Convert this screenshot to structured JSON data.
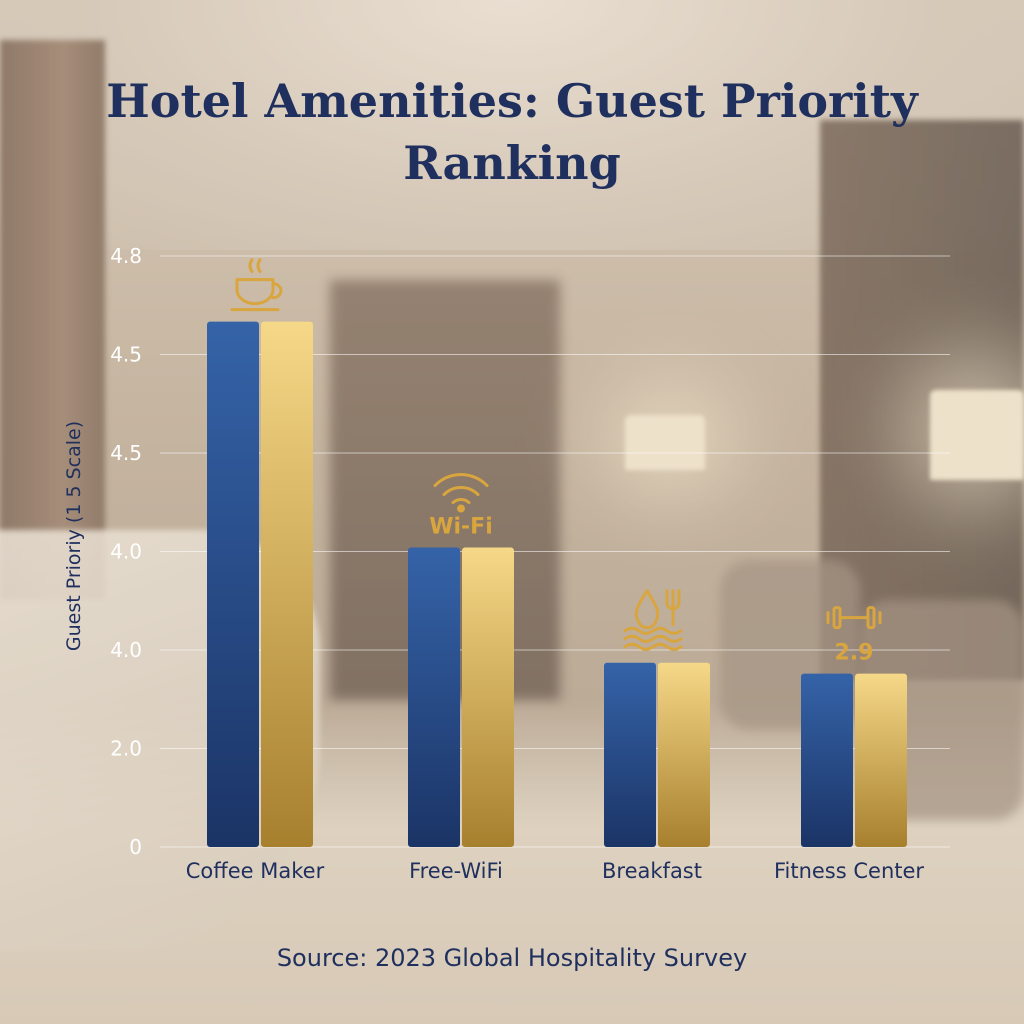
{
  "chart_data": {
    "type": "bar",
    "title": "Hotel Amenities: Guest Priority Ranking",
    "ylabel": "Guest Prioriy (1 5 Scale)",
    "yticks": [
      "0",
      "2.0",
      "4.0",
      "4.0",
      "4.5",
      "4.5",
      "4.8"
    ],
    "categories": [
      "Coffee Maker",
      "Free-WiFi",
      "Breakfast",
      "Fitness Center"
    ],
    "bar_tick_levels": [
      4.6,
      4.02,
      3.74,
      3.52
    ],
    "annotations": [
      {
        "category": "Coffee Maker",
        "icon": "coffee-cup-icon",
        "text": ""
      },
      {
        "category": "Free-WiFi",
        "icon": "wifi-icon",
        "text": "Wi-Fi"
      },
      {
        "category": "Breakfast",
        "icon": "breakfast-icon",
        "text": ""
      },
      {
        "category": "Fitness Center",
        "icon": "dumbbell-icon",
        "text": "2.9"
      }
    ],
    "series_colors": [
      "#2d5597",
      "#e8c066"
    ],
    "grid": true,
    "source": "Source: 2023 Global Hospitality Survey"
  }
}
